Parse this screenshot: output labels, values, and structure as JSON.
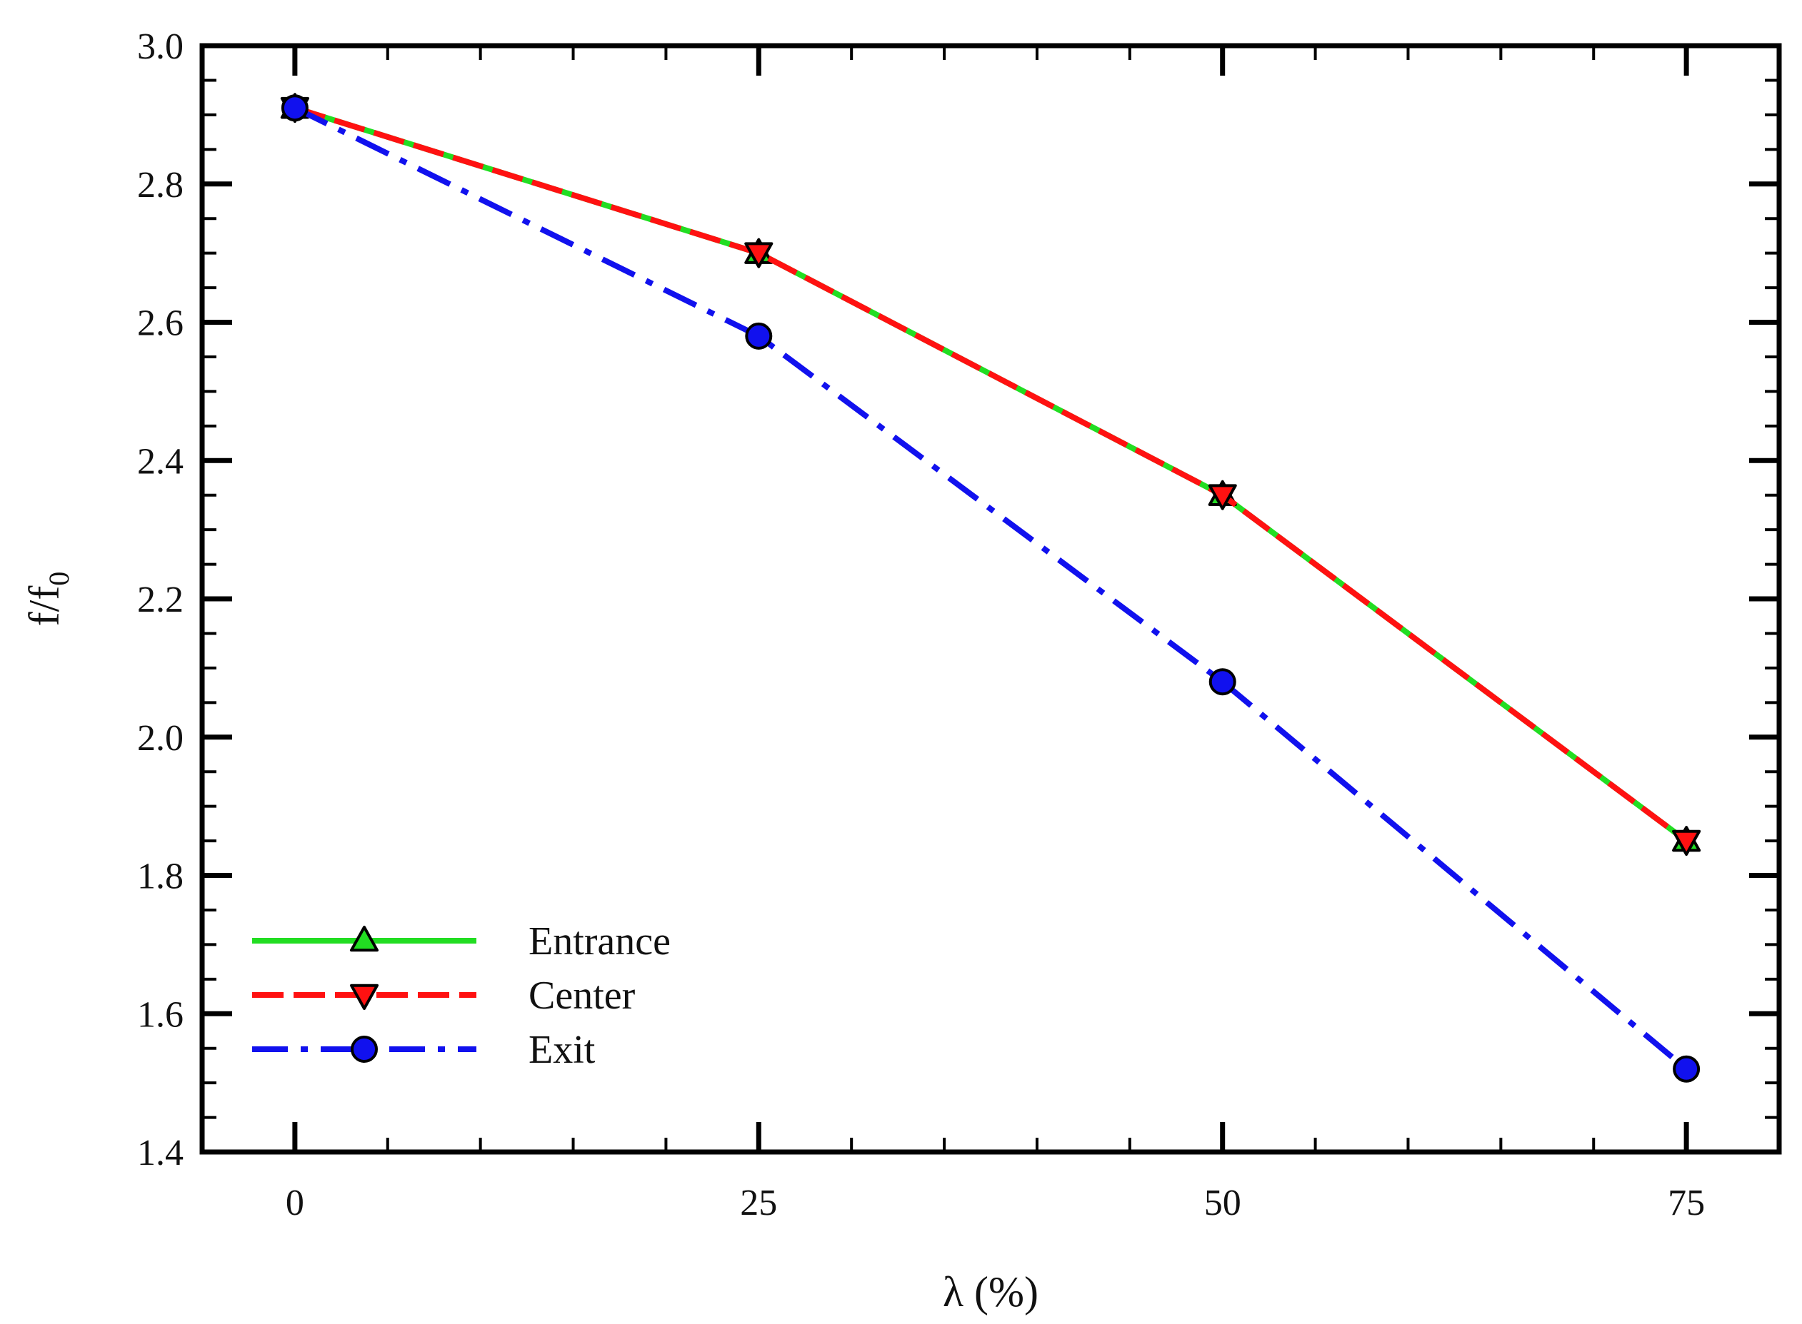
{
  "chart_data": {
    "type": "line",
    "xlabel": "λ (%)",
    "ylabel": {
      "base": "f/f",
      "subscript": "0"
    },
    "xlim": [
      -5,
      80
    ],
    "ylim": [
      1.4,
      3.0
    ],
    "x_ticks": [
      0,
      25,
      50,
      75
    ],
    "x_tick_labels": [
      "0",
      "25",
      "50",
      "75"
    ],
    "x_minor_step": 5,
    "y_ticks": [
      1.4,
      1.6,
      1.8,
      2.0,
      2.2,
      2.4,
      2.6,
      2.8,
      3.0
    ],
    "y_tick_labels": [
      "1.4",
      "1.6",
      "1.8",
      "2.0",
      "2.2",
      "2.4",
      "2.6",
      "2.8",
      "3.0"
    ],
    "y_minor_step": 0.05,
    "grid": false,
    "legend_position": "bottom-left",
    "x": [
      0,
      25,
      50,
      75
    ],
    "series": [
      {
        "name": "Entrance",
        "values": [
          2.91,
          2.7,
          2.35,
          1.85
        ],
        "color": "#22dd22",
        "line_style": "solid",
        "marker": "triangle-up"
      },
      {
        "name": "Center",
        "values": [
          2.91,
          2.7,
          2.35,
          1.85
        ],
        "color": "#ff1111",
        "line_style": "dashed",
        "marker": "triangle-down"
      },
      {
        "name": "Exit",
        "values": [
          2.91,
          2.58,
          2.08,
          1.52
        ],
        "color": "#1111ee",
        "line_style": "dash-dot",
        "marker": "circle"
      }
    ]
  }
}
